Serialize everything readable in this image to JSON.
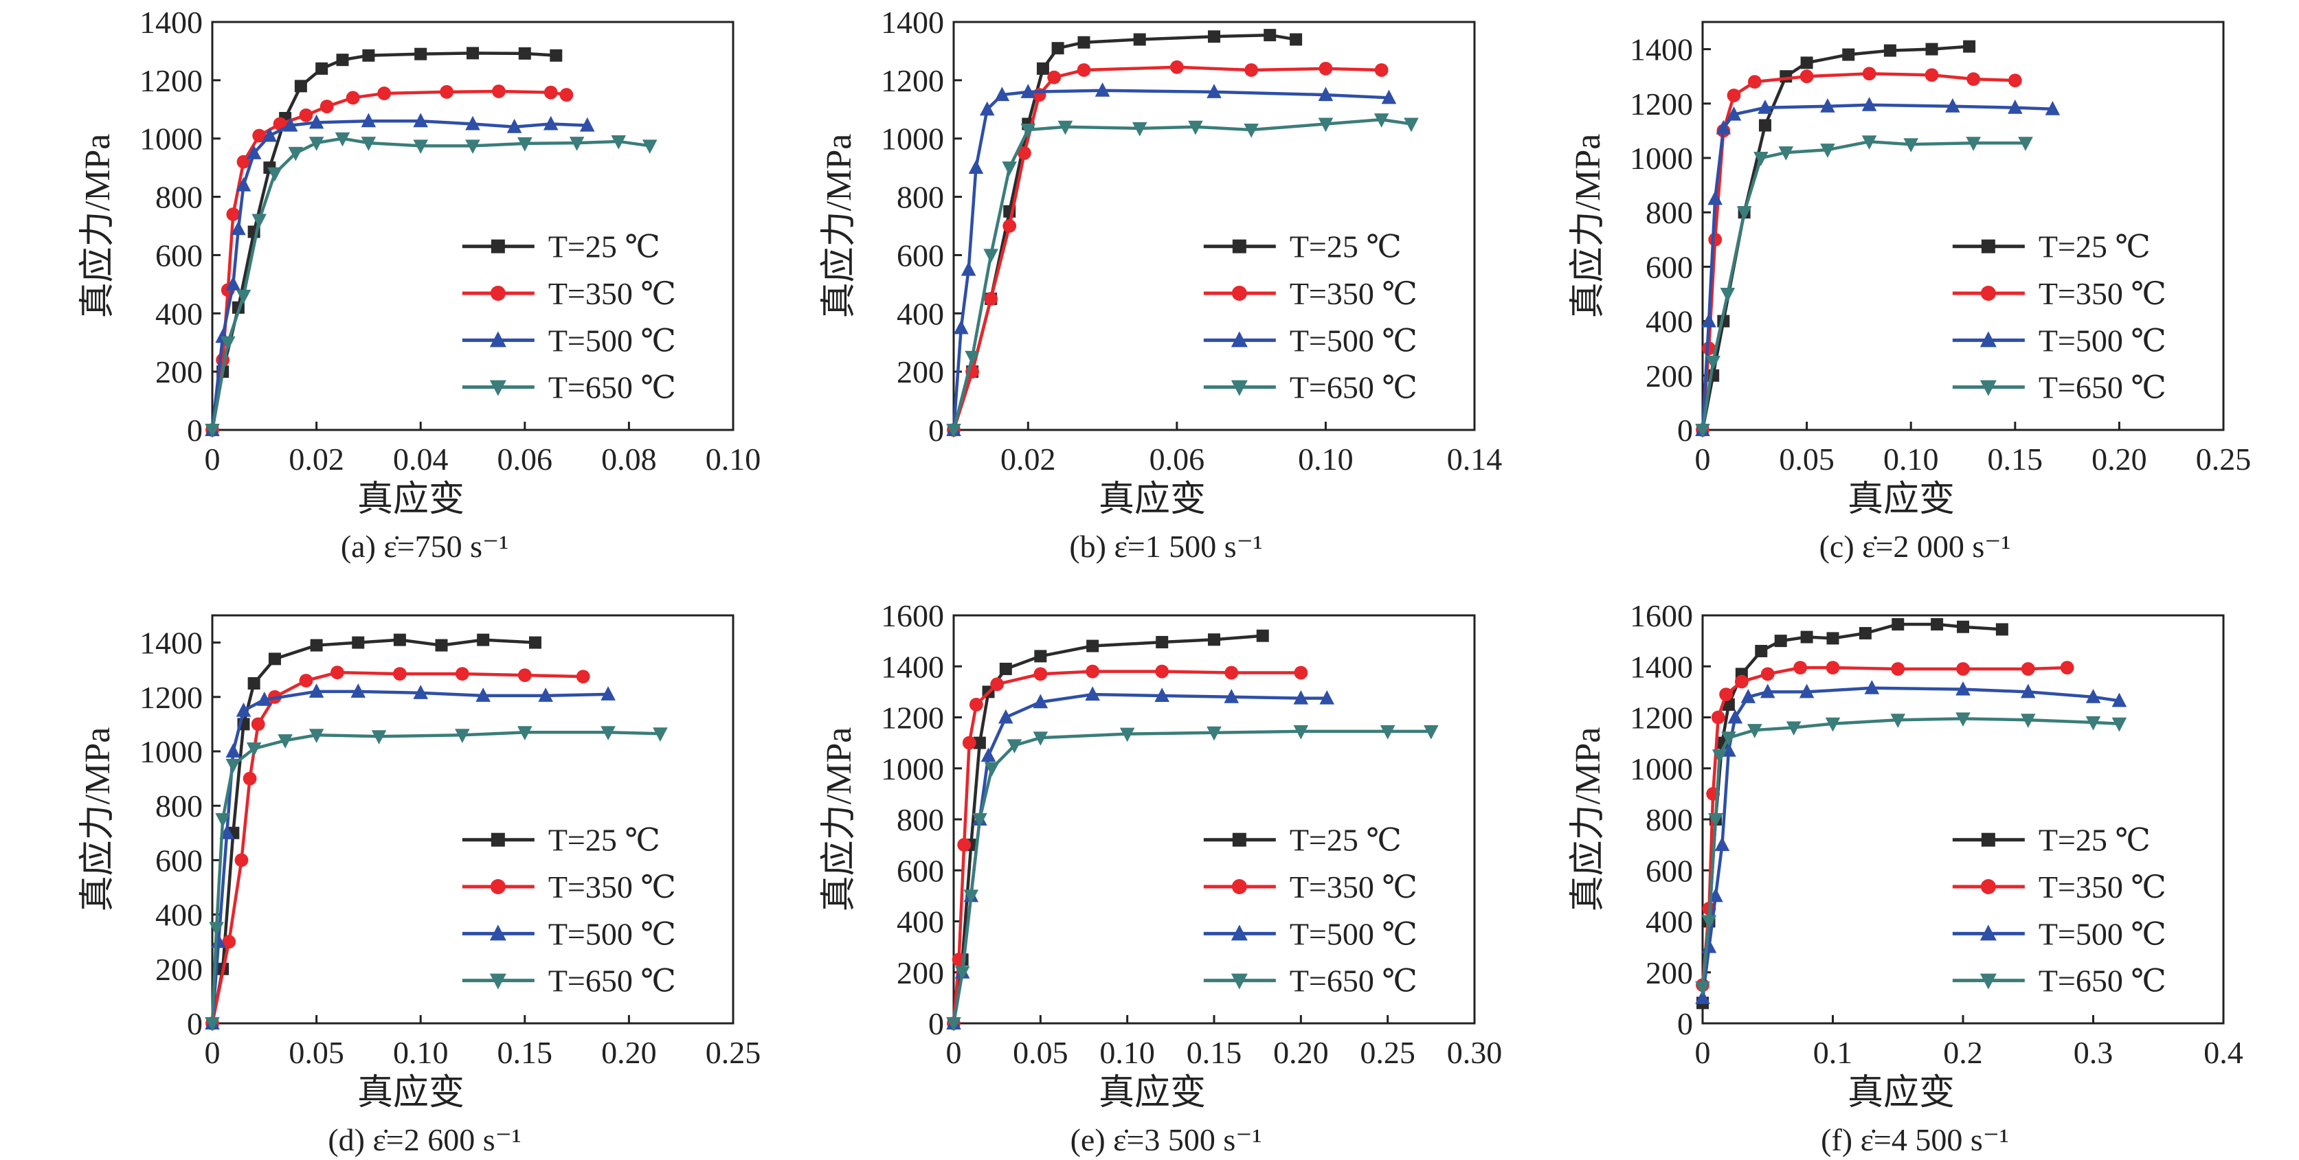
{
  "colors": {
    "T25": "#2b2b2b",
    "T350": "#e8262b",
    "T500": "#2e4fa8",
    "T650": "#3a7d7a"
  },
  "chart_data": [
    {
      "type": "line",
      "title": "(a) ε̇=750 s⁻¹",
      "xlabel": "真应变",
      "ylabel": "真应力/MPa",
      "xlim": [
        0,
        0.1
      ],
      "ylim": [
        0,
        1400
      ],
      "xticks": [
        0,
        0.02,
        0.04,
        0.06,
        0.08,
        0.1
      ],
      "xtick_labels": [
        "0",
        "0.02",
        "0.04",
        "0.06",
        "0.08",
        "0.10"
      ],
      "yticks": [
        0,
        200,
        400,
        600,
        800,
        1000,
        1200,
        1400
      ],
      "ytick_labels": [
        "0",
        "200",
        "400",
        "600",
        "800",
        "1000",
        "1200",
        "1400"
      ],
      "legend_position": "lower-right",
      "series": [
        {
          "name": "T=25 ℃",
          "marker": "square",
          "color_key": "T25",
          "x": [
            0,
            0.002,
            0.005,
            0.008,
            0.011,
            0.014,
            0.017,
            0.021,
            0.025,
            0.03,
            0.04,
            0.05,
            0.06,
            0.066
          ],
          "y": [
            0,
            200,
            420,
            680,
            900,
            1070,
            1180,
            1240,
            1270,
            1285,
            1290,
            1293,
            1292,
            1285
          ]
        },
        {
          "name": "T=350 ℃",
          "marker": "circle",
          "color_key": "T350",
          "x": [
            0,
            0.002,
            0.003,
            0.004,
            0.006,
            0.009,
            0.013,
            0.018,
            0.022,
            0.027,
            0.033,
            0.045,
            0.055,
            0.065,
            0.068
          ],
          "y": [
            0,
            240,
            480,
            740,
            920,
            1010,
            1050,
            1080,
            1110,
            1140,
            1155,
            1160,
            1162,
            1158,
            1150
          ]
        },
        {
          "name": "T=500 ℃",
          "marker": "triangle-up",
          "color_key": "T500",
          "x": [
            0,
            0.002,
            0.004,
            0.005,
            0.006,
            0.008,
            0.011,
            0.015,
            0.02,
            0.03,
            0.04,
            0.05,
            0.058,
            0.065,
            0.072
          ],
          "y": [
            0,
            320,
            500,
            690,
            840,
            950,
            1010,
            1045,
            1055,
            1060,
            1060,
            1050,
            1040,
            1050,
            1045
          ]
        },
        {
          "name": "T=650 ℃",
          "marker": "triangle-down",
          "color_key": "T650",
          "x": [
            0,
            0.003,
            0.006,
            0.009,
            0.012,
            0.016,
            0.02,
            0.025,
            0.03,
            0.04,
            0.05,
            0.06,
            0.07,
            0.078,
            0.084
          ],
          "y": [
            0,
            300,
            460,
            720,
            880,
            950,
            985,
            1000,
            985,
            975,
            975,
            983,
            985,
            990,
            975
          ]
        }
      ]
    },
    {
      "type": "line",
      "title": "(b) ε̇=1 500 s⁻¹",
      "xlabel": "真应变",
      "ylabel": "真应力/MPa",
      "xlim": [
        0,
        0.14
      ],
      "ylim": [
        0,
        1400
      ],
      "xticks": [
        0.02,
        0.06,
        0.1,
        0.14
      ],
      "xtick_labels": [
        "0.02",
        "0.06",
        "0.10",
        "0.14"
      ],
      "yticks": [
        0,
        200,
        400,
        600,
        800,
        1000,
        1200,
        1400
      ],
      "ytick_labels": [
        "0",
        "200",
        "400",
        "600",
        "800",
        "1000",
        "1200",
        "1400"
      ],
      "legend_position": "lower-right",
      "series": [
        {
          "name": "T=25 ℃",
          "marker": "square",
          "color_key": "T25",
          "x": [
            0,
            0.005,
            0.01,
            0.015,
            0.02,
            0.024,
            0.028,
            0.035,
            0.05,
            0.07,
            0.085,
            0.092
          ],
          "y": [
            0,
            200,
            450,
            750,
            1050,
            1240,
            1310,
            1330,
            1340,
            1350,
            1355,
            1340
          ]
        },
        {
          "name": "T=350 ℃",
          "marker": "circle",
          "color_key": "T350",
          "x": [
            0,
            0.005,
            0.01,
            0.015,
            0.019,
            0.023,
            0.027,
            0.035,
            0.06,
            0.08,
            0.1,
            0.115
          ],
          "y": [
            0,
            200,
            450,
            700,
            950,
            1150,
            1210,
            1235,
            1245,
            1235,
            1240,
            1235
          ]
        },
        {
          "name": "T=500 ℃",
          "marker": "triangle-up",
          "color_key": "T500",
          "x": [
            0,
            0.002,
            0.004,
            0.006,
            0.009,
            0.013,
            0.02,
            0.04,
            0.07,
            0.1,
            0.117
          ],
          "y": [
            0,
            350,
            550,
            900,
            1100,
            1150,
            1160,
            1165,
            1160,
            1150,
            1140
          ]
        },
        {
          "name": "T=650 ℃",
          "marker": "triangle-down",
          "color_key": "T650",
          "x": [
            0,
            0.005,
            0.01,
            0.015,
            0.02,
            0.03,
            0.05,
            0.065,
            0.08,
            0.1,
            0.115,
            0.123
          ],
          "y": [
            0,
            250,
            600,
            900,
            1030,
            1040,
            1035,
            1040,
            1030,
            1050,
            1065,
            1050
          ]
        }
      ]
    },
    {
      "type": "line",
      "title": "(c) ε̇=2 000 s⁻¹",
      "xlabel": "真应变",
      "ylabel": "真应力/MPa",
      "xlim": [
        0,
        0.25
      ],
      "ylim": [
        0,
        1500
      ],
      "xticks": [
        0,
        0.05,
        0.1,
        0.15,
        0.2,
        0.25
      ],
      "xtick_labels": [
        "0",
        "0.05",
        "0.10",
        "0.15",
        "0.20",
        "0.25"
      ],
      "yticks": [
        0,
        200,
        400,
        600,
        800,
        1000,
        1200,
        1400
      ],
      "ytick_labels": [
        "0",
        "200",
        "400",
        "600",
        "800",
        "1000",
        "1200",
        "1400"
      ],
      "legend_position": "lower-right",
      "series": [
        {
          "name": "T=25 ℃",
          "marker": "square",
          "color_key": "T25",
          "x": [
            0,
            0.005,
            0.01,
            0.02,
            0.03,
            0.04,
            0.05,
            0.07,
            0.09,
            0.11,
            0.128
          ],
          "y": [
            0,
            200,
            400,
            800,
            1120,
            1300,
            1350,
            1380,
            1395,
            1400,
            1410
          ]
        },
        {
          "name": "T=350 ℃",
          "marker": "circle",
          "color_key": "T350",
          "x": [
            0,
            0.003,
            0.006,
            0.01,
            0.015,
            0.025,
            0.05,
            0.08,
            0.11,
            0.13,
            0.15
          ],
          "y": [
            0,
            300,
            700,
            1100,
            1230,
            1280,
            1300,
            1310,
            1305,
            1290,
            1285
          ]
        },
        {
          "name": "T=500 ℃",
          "marker": "triangle-up",
          "color_key": "T500",
          "x": [
            0,
            0.003,
            0.006,
            0.01,
            0.015,
            0.03,
            0.06,
            0.08,
            0.12,
            0.15,
            0.168
          ],
          "y": [
            0,
            400,
            850,
            1110,
            1160,
            1185,
            1190,
            1195,
            1190,
            1185,
            1180
          ]
        },
        {
          "name": "T=650 ℃",
          "marker": "triangle-down",
          "color_key": "T650",
          "x": [
            0,
            0.005,
            0.012,
            0.02,
            0.028,
            0.04,
            0.06,
            0.08,
            0.1,
            0.13,
            0.155
          ],
          "y": [
            0,
            250,
            500,
            800,
            1000,
            1020,
            1030,
            1060,
            1050,
            1055,
            1055
          ]
        }
      ]
    },
    {
      "type": "line",
      "title": "(d) ε̇=2 600 s⁻¹",
      "xlabel": "真应变",
      "ylabel": "真应力/MPa",
      "xlim": [
        0,
        0.25
      ],
      "ylim": [
        0,
        1500
      ],
      "xticks": [
        0,
        0.05,
        0.1,
        0.15,
        0.2,
        0.25
      ],
      "xtick_labels": [
        "0",
        "0.05",
        "0.10",
        "0.15",
        "0.20",
        "0.25"
      ],
      "yticks": [
        0,
        200,
        400,
        600,
        800,
        1000,
        1200,
        1400
      ],
      "ytick_labels": [
        "0",
        "200",
        "400",
        "600",
        "800",
        "1000",
        "1200",
        "1400"
      ],
      "legend_position": "lower-right",
      "series": [
        {
          "name": "T=25 ℃",
          "marker": "square",
          "color_key": "T25",
          "x": [
            0,
            0.005,
            0.01,
            0.015,
            0.02,
            0.03,
            0.05,
            0.07,
            0.09,
            0.11,
            0.13,
            0.155
          ],
          "y": [
            0,
            200,
            700,
            1100,
            1250,
            1340,
            1390,
            1400,
            1410,
            1390,
            1410,
            1400
          ]
        },
        {
          "name": "T=350 ℃",
          "marker": "circle",
          "color_key": "T350",
          "x": [
            0,
            0.008,
            0.014,
            0.018,
            0.022,
            0.03,
            0.045,
            0.06,
            0.09,
            0.12,
            0.15,
            0.178
          ],
          "y": [
            0,
            300,
            600,
            900,
            1100,
            1200,
            1260,
            1290,
            1285,
            1285,
            1280,
            1275
          ]
        },
        {
          "name": "T=500 ℃",
          "marker": "triangle-up",
          "color_key": "T500",
          "x": [
            0,
            0.003,
            0.007,
            0.01,
            0.015,
            0.025,
            0.05,
            0.07,
            0.1,
            0.13,
            0.16,
            0.19
          ],
          "y": [
            0,
            300,
            700,
            1000,
            1150,
            1190,
            1220,
            1220,
            1215,
            1205,
            1205,
            1210
          ]
        },
        {
          "name": "T=650 ℃",
          "marker": "triangle-down",
          "color_key": "T650",
          "x": [
            0,
            0.002,
            0.005,
            0.01,
            0.02,
            0.035,
            0.05,
            0.08,
            0.12,
            0.15,
            0.19,
            0.215
          ],
          "y": [
            0,
            350,
            750,
            950,
            1010,
            1040,
            1060,
            1055,
            1060,
            1070,
            1070,
            1065
          ]
        }
      ]
    },
    {
      "type": "line",
      "title": "(e) ε̇=3 500 s⁻¹",
      "xlabel": "真应变",
      "ylabel": "真应力/MPa",
      "xlim": [
        0,
        0.3
      ],
      "ylim": [
        0,
        1600
      ],
      "xticks": [
        0,
        0.05,
        0.1,
        0.15,
        0.2,
        0.25,
        0.3
      ],
      "xtick_labels": [
        "0",
        "0.05",
        "0.10",
        "0.15",
        "0.20",
        "0.25",
        "0.30"
      ],
      "yticks": [
        0,
        200,
        400,
        600,
        800,
        1000,
        1200,
        1400,
        1600
      ],
      "ytick_labels": [
        "0",
        "200",
        "400",
        "600",
        "800",
        "1000",
        "1200",
        "1400",
        "1600"
      ],
      "legend_position": "lower-right",
      "series": [
        {
          "name": "T=25 ℃",
          "marker": "square",
          "color_key": "T25",
          "x": [
            0,
            0.005,
            0.01,
            0.015,
            0.02,
            0.03,
            0.05,
            0.08,
            0.12,
            0.15,
            0.178
          ],
          "y": [
            0,
            250,
            700,
            1100,
            1300,
            1390,
            1440,
            1480,
            1495,
            1505,
            1520
          ]
        },
        {
          "name": "T=350 ℃",
          "marker": "circle",
          "color_key": "T350",
          "x": [
            0,
            0.003,
            0.006,
            0.009,
            0.013,
            0.025,
            0.05,
            0.08,
            0.12,
            0.16,
            0.2
          ],
          "y": [
            0,
            250,
            700,
            1100,
            1250,
            1330,
            1370,
            1380,
            1380,
            1375,
            1375
          ]
        },
        {
          "name": "T=500 ℃",
          "marker": "triangle-up",
          "color_key": "T500",
          "x": [
            0,
            0.005,
            0.01,
            0.015,
            0.02,
            0.03,
            0.05,
            0.08,
            0.12,
            0.16,
            0.2,
            0.215
          ],
          "y": [
            0,
            200,
            500,
            800,
            1050,
            1200,
            1260,
            1290,
            1285,
            1280,
            1275,
            1275
          ]
        },
        {
          "name": "T=650 ℃",
          "marker": "triangle-down",
          "color_key": "T650",
          "x": [
            0,
            0.005,
            0.01,
            0.015,
            0.022,
            0.035,
            0.05,
            0.1,
            0.15,
            0.2,
            0.25,
            0.275
          ],
          "y": [
            0,
            200,
            500,
            800,
            1000,
            1090,
            1120,
            1135,
            1140,
            1145,
            1145,
            1145
          ]
        }
      ]
    },
    {
      "type": "line",
      "title": "(f) ε̇=4 500 s⁻¹",
      "xlabel": "真应变",
      "ylabel": "真应力/MPa",
      "xlim": [
        0,
        0.4
      ],
      "ylim": [
        0,
        1600
      ],
      "xticks": [
        0,
        0.1,
        0.2,
        0.3,
        0.4
      ],
      "xtick_labels": [
        "0",
        "0.1",
        "0.2",
        "0.3",
        "0.4"
      ],
      "yticks": [
        0,
        200,
        400,
        600,
        800,
        1000,
        1200,
        1400,
        1600
      ],
      "ytick_labels": [
        "0",
        "200",
        "400",
        "600",
        "800",
        "1000",
        "1200",
        "1400",
        "1600"
      ],
      "legend_position": "lower-right",
      "series": [
        {
          "name": "T=25 ℃",
          "marker": "square",
          "color_key": "T25",
          "x": [
            0,
            0.005,
            0.01,
            0.015,
            0.02,
            0.03,
            0.045,
            0.06,
            0.08,
            0.1,
            0.125,
            0.15,
            0.18,
            0.2,
            0.23
          ],
          "y": [
            80,
            400,
            800,
            1100,
            1250,
            1370,
            1460,
            1500,
            1515,
            1510,
            1530,
            1565,
            1565,
            1555,
            1545
          ]
        },
        {
          "name": "T=350 ℃",
          "marker": "circle",
          "color_key": "T350",
          "x": [
            0,
            0.005,
            0.008,
            0.012,
            0.018,
            0.03,
            0.05,
            0.075,
            0.1,
            0.15,
            0.2,
            0.25,
            0.28
          ],
          "y": [
            150,
            450,
            900,
            1200,
            1290,
            1340,
            1370,
            1395,
            1395,
            1390,
            1390,
            1390,
            1395
          ]
        },
        {
          "name": "T=500 ℃",
          "marker": "triangle-up",
          "color_key": "T500",
          "x": [
            0,
            0.005,
            0.01,
            0.015,
            0.02,
            0.025,
            0.035,
            0.05,
            0.08,
            0.13,
            0.2,
            0.25,
            0.3,
            0.32
          ],
          "y": [
            100,
            300,
            500,
            700,
            1070,
            1200,
            1280,
            1300,
            1300,
            1315,
            1310,
            1300,
            1280,
            1265
          ]
        },
        {
          "name": "T=650 ℃",
          "marker": "triangle-down",
          "color_key": "T650",
          "x": [
            0,
            0.005,
            0.01,
            0.013,
            0.02,
            0.04,
            0.07,
            0.1,
            0.15,
            0.2,
            0.25,
            0.3,
            0.32
          ],
          "y": [
            140,
            400,
            800,
            1050,
            1120,
            1150,
            1160,
            1175,
            1190,
            1195,
            1190,
            1180,
            1175
          ]
        }
      ]
    }
  ]
}
